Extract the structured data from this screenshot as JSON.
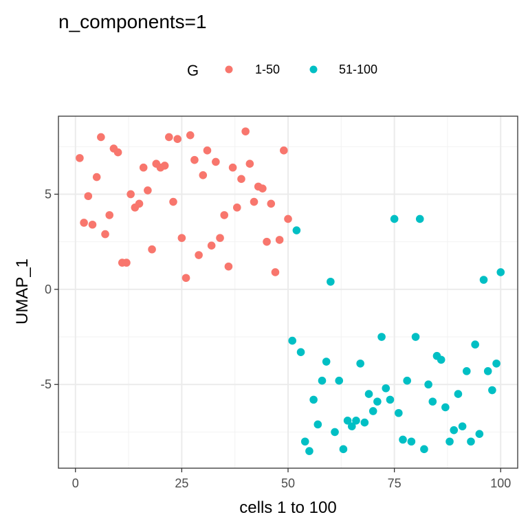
{
  "chart_data": {
    "type": "scatter",
    "title": "n_components=1",
    "xlabel": "cells 1 to 100",
    "ylabel": "UMAP_1",
    "xlim": [
      -4,
      104
    ],
    "ylim": [
      -9.4,
      9.1
    ],
    "xticks": [
      0,
      25,
      50,
      75,
      100
    ],
    "yticks": [
      -5,
      0,
      5
    ],
    "grid": true,
    "legend": {
      "title": "G",
      "placement": "top",
      "entries": [
        {
          "label": "1-50",
          "color": "#F8766D"
        },
        {
          "label": "51-100",
          "color": "#00BFC4"
        }
      ]
    },
    "series": [
      {
        "name": "1-50",
        "color": "#F8766D",
        "points": [
          [
            1,
            6.9
          ],
          [
            2,
            3.5
          ],
          [
            3,
            4.9
          ],
          [
            4,
            3.4
          ],
          [
            5,
            5.9
          ],
          [
            6,
            8.0
          ],
          [
            7,
            2.9
          ],
          [
            8,
            3.9
          ],
          [
            9,
            7.4
          ],
          [
            10,
            7.2
          ],
          [
            11,
            1.4
          ],
          [
            12,
            1.4
          ],
          [
            13,
            5.0
          ],
          [
            14,
            4.3
          ],
          [
            15,
            4.5
          ],
          [
            16,
            6.4
          ],
          [
            17,
            5.2
          ],
          [
            18,
            2.1
          ],
          [
            19,
            6.6
          ],
          [
            20,
            6.4
          ],
          [
            21,
            6.5
          ],
          [
            22,
            8.0
          ],
          [
            23,
            4.6
          ],
          [
            24,
            7.9
          ],
          [
            25,
            2.7
          ],
          [
            26,
            0.6
          ],
          [
            27,
            8.1
          ],
          [
            28,
            6.8
          ],
          [
            29,
            1.8
          ],
          [
            30,
            6.0
          ],
          [
            31,
            7.3
          ],
          [
            32,
            2.3
          ],
          [
            33,
            6.7
          ],
          [
            34,
            2.7
          ],
          [
            35,
            3.9
          ],
          [
            36,
            1.2
          ],
          [
            37,
            6.4
          ],
          [
            38,
            4.3
          ],
          [
            39,
            5.8
          ],
          [
            40,
            8.3
          ],
          [
            41,
            6.6
          ],
          [
            42,
            4.6
          ],
          [
            43,
            5.4
          ],
          [
            44,
            5.3
          ],
          [
            45,
            2.5
          ],
          [
            46,
            4.5
          ],
          [
            47,
            0.9
          ],
          [
            48,
            2.6
          ],
          [
            49,
            7.3
          ],
          [
            50,
            3.7
          ]
        ]
      },
      {
        "name": "51-100",
        "color": "#00BFC4",
        "points": [
          [
            51,
            -2.7
          ],
          [
            52,
            3.1
          ],
          [
            53,
            -3.3
          ],
          [
            54,
            -8.0
          ],
          [
            55,
            -8.5
          ],
          [
            56,
            -5.8
          ],
          [
            57,
            -7.1
          ],
          [
            58,
            -4.8
          ],
          [
            59,
            -3.8
          ],
          [
            60,
            0.4
          ],
          [
            61,
            -7.5
          ],
          [
            62,
            -4.8
          ],
          [
            63,
            -8.4
          ],
          [
            64,
            -6.9
          ],
          [
            65,
            -7.2
          ],
          [
            66,
            -6.9
          ],
          [
            67,
            -3.9
          ],
          [
            68,
            -7.0
          ],
          [
            69,
            -5.5
          ],
          [
            70,
            -6.4
          ],
          [
            71,
            -5.9
          ],
          [
            72,
            -2.5
          ],
          [
            73,
            -5.2
          ],
          [
            74,
            -5.8
          ],
          [
            75,
            3.7
          ],
          [
            76,
            -6.5
          ],
          [
            77,
            -7.9
          ],
          [
            78,
            -4.8
          ],
          [
            79,
            -8.0
          ],
          [
            80,
            -2.5
          ],
          [
            81,
            3.7
          ],
          [
            82,
            -8.4
          ],
          [
            83,
            -5.0
          ],
          [
            84,
            -5.9
          ],
          [
            85,
            -3.5
          ],
          [
            86,
            -3.7
          ],
          [
            87,
            -6.2
          ],
          [
            88,
            -8.0
          ],
          [
            89,
            -7.4
          ],
          [
            90,
            -5.5
          ],
          [
            91,
            -7.2
          ],
          [
            92,
            -4.3
          ],
          [
            93,
            -8.0
          ],
          [
            94,
            -2.9
          ],
          [
            95,
            -7.6
          ],
          [
            96,
            0.5
          ],
          [
            97,
            -4.3
          ],
          [
            98,
            -5.3
          ],
          [
            99,
            -3.9
          ],
          [
            100,
            0.9
          ]
        ]
      }
    ]
  }
}
